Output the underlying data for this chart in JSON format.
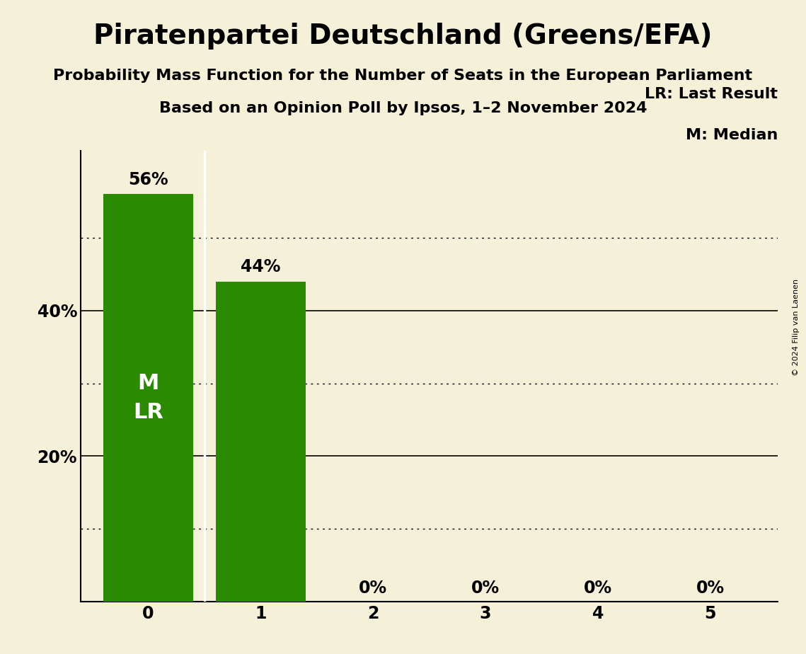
{
  "title": "Piratenpartei Deutschland (Greens/EFA)",
  "subtitle1": "Probability Mass Function for the Number of Seats in the European Parliament",
  "subtitle2": "Based on an Opinion Poll by Ipsos, 1–2 November 2024",
  "copyright": "© 2024 Filip van Laenen",
  "categories": [
    0,
    1,
    2,
    3,
    4,
    5
  ],
  "values": [
    0.56,
    0.44,
    0.0,
    0.0,
    0.0,
    0.0
  ],
  "bar_color": "#2a8a00",
  "bar_labels": [
    "56%",
    "44%",
    "0%",
    "0%",
    "0%",
    "0%"
  ],
  "background_color": "#f5f0d8",
  "ylim": [
    0,
    0.62
  ],
  "yticks_solid": [
    0.2,
    0.4
  ],
  "ytick_solid_labels": [
    "20%",
    "40%"
  ],
  "yticks_dotted": [
    0.1,
    0.3,
    0.5
  ],
  "legend_lr": "LR: Last Result",
  "legend_m": "M: Median",
  "bar_annotation_text": "M\nLR",
  "title_fontsize": 28,
  "subtitle_fontsize": 16,
  "label_fontsize": 17,
  "tick_fontsize": 17,
  "annotation_fontsize": 22,
  "legend_fontsize": 16
}
